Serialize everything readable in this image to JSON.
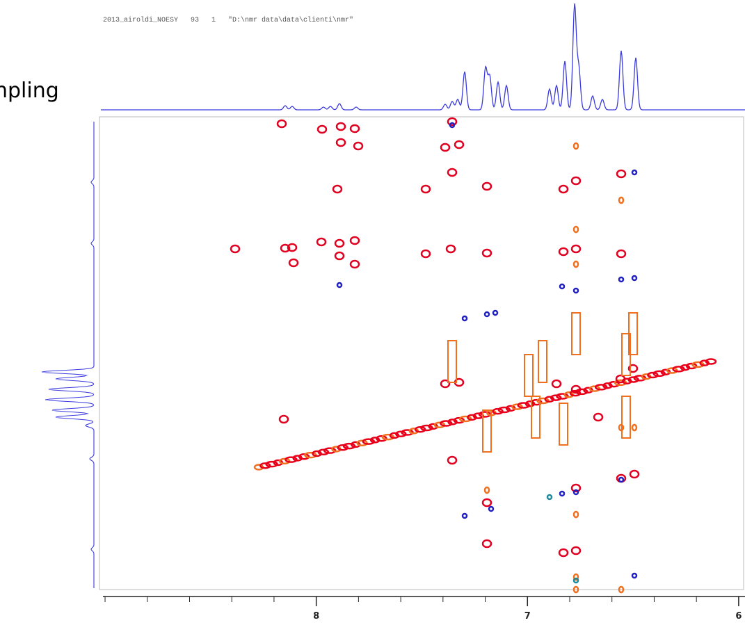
{
  "chart_data": {
    "type": "nmr-2d",
    "title": "2013_airoldi_NOESY   93   1   \"D:\\nmr data\\data\\clienti\\nmr\"",
    "side_label": "npling",
    "xlim": [
      9.01,
      5.97
    ],
    "xticks": [
      8,
      7,
      6
    ]
  }
}
